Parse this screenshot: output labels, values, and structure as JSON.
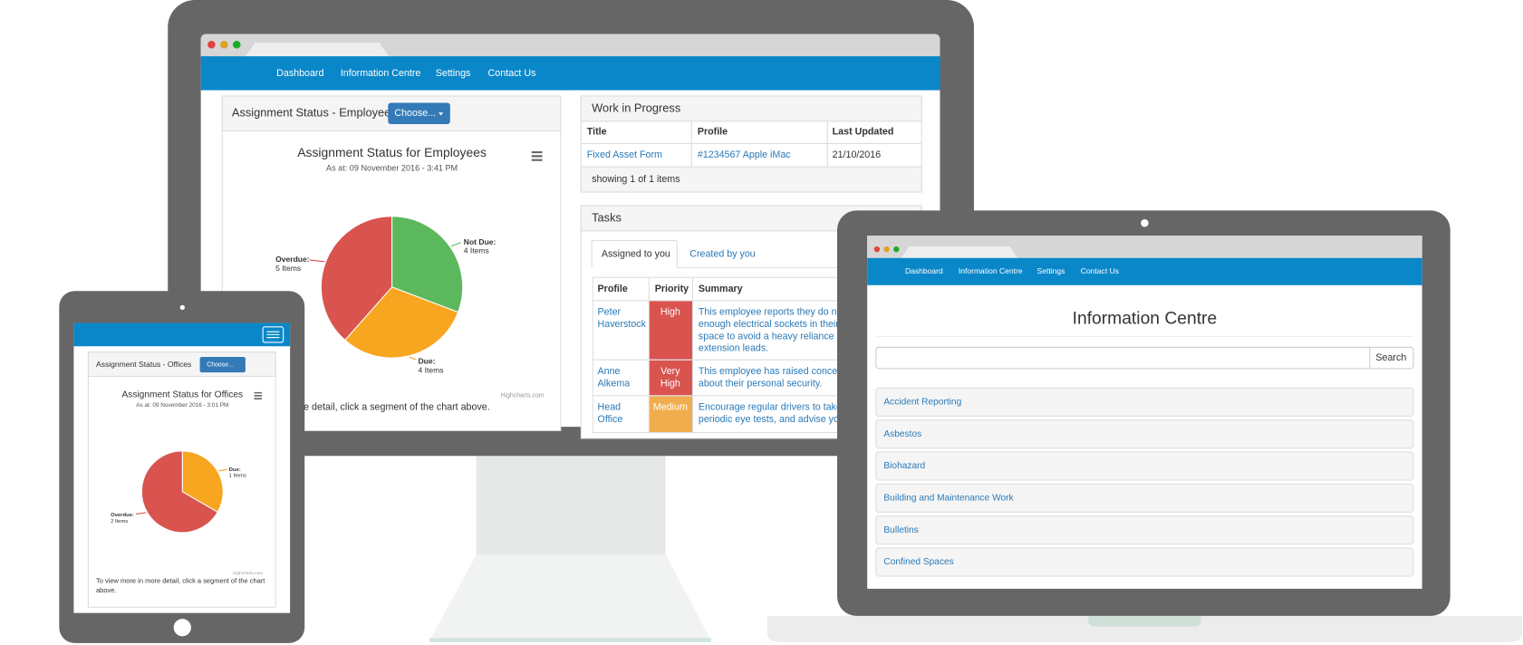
{
  "monitor": {
    "nav": [
      "Dashboard",
      "Information Centre",
      "Settings",
      "Contact Us"
    ],
    "employees": {
      "title": "Assignment Status - Employees",
      "button": "Choose...",
      "chart": {
        "type": "pie",
        "title": "Assignment Status for Employees",
        "subtitle": "As at: 09 November 2016 - 3:41 PM",
        "categories": [
          "Not Due:",
          "Due:",
          "Overdue:"
        ],
        "values": [
          4,
          4,
          5
        ],
        "value_labels": [
          "4 Items",
          "4 Items",
          "5 Items"
        ],
        "colors": [
          "#5cb85c",
          "#f8a520",
          "#d9534f"
        ],
        "credits": "Highcharts.com"
      },
      "note": "To view more in more detail, click a segment of the chart above."
    },
    "work_in_progress": {
      "title": "Work in Progress",
      "columns": [
        "Title",
        "Profile",
        "Last Updated"
      ],
      "rows": [
        [
          "Fixed Asset Form",
          "#1234567 Apple iMac",
          "21/10/2016"
        ]
      ],
      "footer": "showing 1 of 1 items"
    },
    "tasks": {
      "title": "Tasks",
      "tabs": [
        "Assigned to you",
        "Created by you"
      ],
      "columns": [
        "Profile",
        "Priority",
        "Summary"
      ],
      "rows": [
        {
          "profile": [
            "Peter",
            "Haverstock"
          ],
          "priority": [
            "High"
          ],
          "color": "#d9534f",
          "summary": [
            "This employee reports they do not",
            "enough electrical sockets in their w",
            "space to avoid a heavy reliance on",
            "extension leads."
          ]
        },
        {
          "profile": [
            "Anne",
            "Alkema"
          ],
          "priority": [
            "Very",
            "High"
          ],
          "color": "#d9534f",
          "summary": [
            "This employee has raised concerns",
            "about their personal security."
          ]
        },
        {
          "profile": [
            "Head",
            "Office"
          ],
          "priority": [
            "Medium"
          ],
          "color": "#f0ad4e",
          "summary": [
            "Encourage regular drivers to take",
            "periodic eye tests, and advise you"
          ]
        }
      ]
    }
  },
  "tablet": {
    "title": "Assignment Status - Offices",
    "button": "Choose...",
    "chart": {
      "type": "pie",
      "title": "Assignment Status for Offices",
      "subtitle": "As at: 09 November 2016 - 3:01 PM",
      "categories": [
        "Due:",
        "Overdue:"
      ],
      "values": [
        1,
        2
      ],
      "value_labels": [
        "1 Items",
        "2 Items"
      ],
      "colors": [
        "#f8a520",
        "#d9534f"
      ],
      "credits": "Highcharts.com"
    },
    "note": [
      "To view more in more detail, click a segment of the chart",
      "above."
    ]
  },
  "laptop": {
    "nav": [
      "Dashboard",
      "Information Centre",
      "Settings",
      "Contact Us"
    ],
    "title": "Information Centre",
    "search_button": "Search",
    "items": [
      "Accident Reporting",
      "Asbestos",
      "Biohazard",
      "Building and Maintenance Work",
      "Bulletins",
      "Confined Spaces"
    ]
  }
}
